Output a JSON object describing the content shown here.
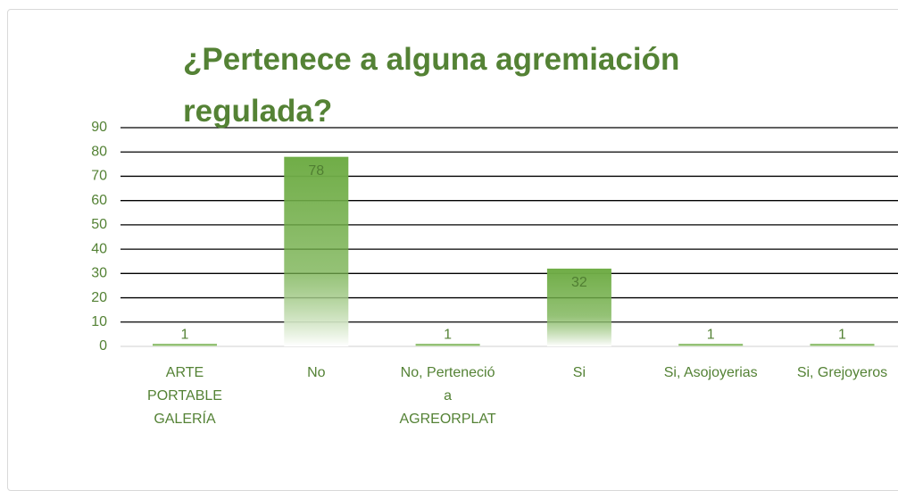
{
  "chart_data": {
    "type": "bar",
    "title": "¿Pertenece a alguna agremiación regulada?",
    "categories": [
      "ARTE PORTABLE GALERÍA",
      "No",
      "No, Perteneció a AGREORPLAT",
      "Si",
      "Si, Asojoyerias",
      "Si, Grejoyeros"
    ],
    "values": [
      1,
      78,
      1,
      32,
      1,
      1
    ],
    "color": "#70ad47",
    "ylim": [
      0,
      90
    ],
    "yticks": [
      0,
      10,
      20,
      30,
      40,
      50,
      60,
      70,
      80,
      90
    ],
    "grid": true
  }
}
